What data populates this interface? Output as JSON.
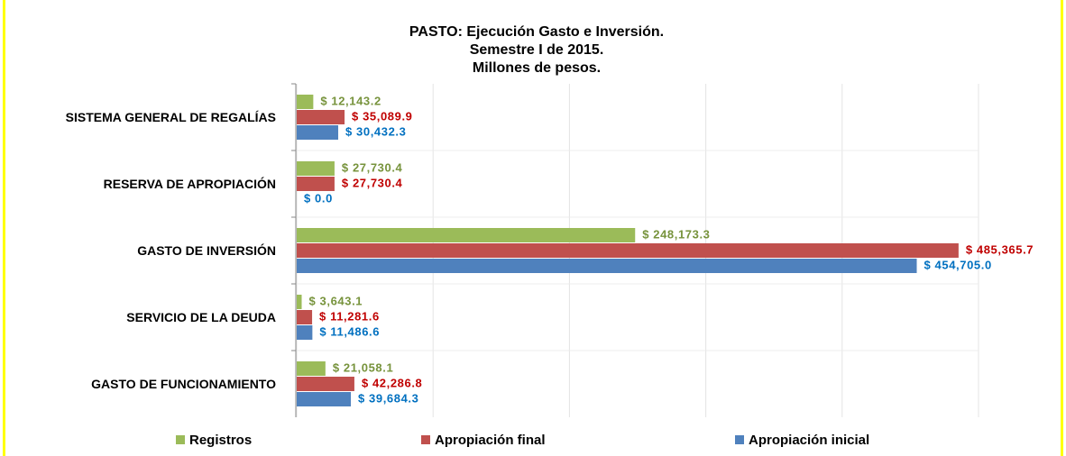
{
  "chart_data": {
    "type": "hbar",
    "title": [
      "PASTO: Ejecución Gasto e Inversión.",
      "Semestre  I  de  2015.",
      "Millones de pesos."
    ],
    "categories": [
      "SISTEMA GENERAL DE REGALÍAS",
      "RESERVA DE APROPIACIÓN",
      "GASTO DE INVERSIÓN",
      "SERVICIO DE LA DEUDA",
      "GASTO DE FUNCIONAMIENTO"
    ],
    "series": [
      {
        "name": "Registros",
        "color": "#9bbb59",
        "label_color": "#77933c",
        "values": [
          12143.2,
          27730.4,
          248173.3,
          3643.1,
          21058.1
        ],
        "value_labels": [
          "$ 12,143.2",
          "$ 27,730.4",
          "$ 248,173.3",
          "$ 3,643.1",
          "$ 21,058.1"
        ]
      },
      {
        "name": "Apropiación final",
        "color": "#c0504d",
        "label_color": "#c00000",
        "values": [
          35089.9,
          27730.4,
          485365.7,
          11281.6,
          42286.8
        ],
        "value_labels": [
          "$ 35,089.9",
          "$ 27,730.4",
          "$ 485,365.7",
          "$ 11,281.6",
          "$ 42,286.8"
        ]
      },
      {
        "name": "Apropiación inicial",
        "color": "#4f81bd",
        "label_color": "#0070c0",
        "values": [
          30432.3,
          0,
          454705.0,
          11486.6,
          39684.3
        ],
        "value_labels": [
          "$ 30,432.3",
          "$ 0.0",
          "$ 454,705.0",
          "$ 11,486.6",
          "$ 39,684.3"
        ]
      }
    ],
    "xlim": [
      0,
      500000
    ],
    "xticks": [
      0,
      100000,
      200000,
      300000,
      400000,
      500000
    ],
    "grid": true,
    "legend": "bottom"
  }
}
